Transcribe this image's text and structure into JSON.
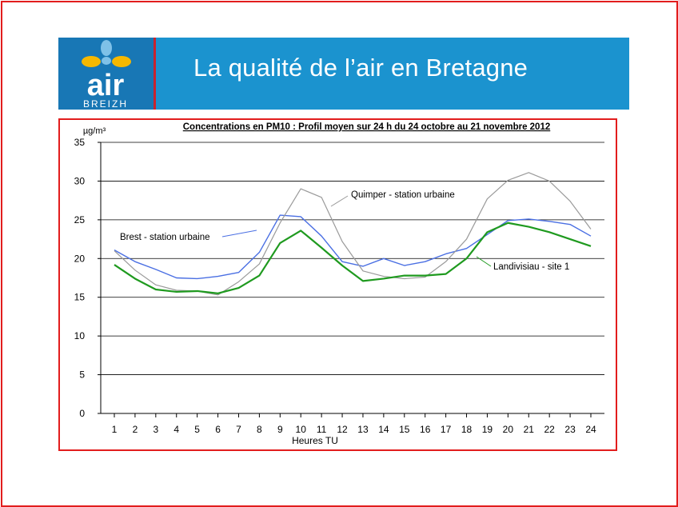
{
  "banner": {
    "logo_text": "AIR",
    "logo_subtext": "BREIZH",
    "title": "La qualité de l’air en Bretagne"
  },
  "colors": {
    "banner_bg": "#1b93cf",
    "logo_bg": "#1877b5",
    "frame": "#e21d1d",
    "brest": "#4a6fe3",
    "quimper": "#9a9a9a",
    "landivisiau": "#1f9a1f"
  },
  "chart_data": {
    "type": "line",
    "title": "Concentrations en PM10 : Profil moyen sur 24 h du 24 octobre au 21 novembre 2012",
    "ylabel": "µg/m³",
    "xlabel": "Heures TU",
    "ylim": [
      0,
      35
    ],
    "yticks": [
      0,
      5,
      10,
      15,
      20,
      25,
      30,
      35
    ],
    "grid": true,
    "x": [
      1,
      2,
      3,
      4,
      5,
      6,
      7,
      8,
      9,
      10,
      11,
      12,
      13,
      14,
      15,
      16,
      17,
      18,
      19,
      20,
      21,
      22,
      23,
      24
    ],
    "series": [
      {
        "name": "Brest - station urbaine",
        "color": "#4a6fe3",
        "values": [
          21.1,
          19.6,
          18.6,
          17.5,
          17.4,
          17.7,
          18.2,
          20.8,
          25.6,
          25.4,
          22.9,
          19.6,
          19.0,
          20.0,
          19.1,
          19.6,
          20.6,
          21.3,
          23.1,
          24.9,
          25.1,
          24.8,
          24.4,
          22.9
        ]
      },
      {
        "name": "Quimper - station urbaine",
        "color": "#9a9a9a",
        "values": [
          21.0,
          18.5,
          16.6,
          15.9,
          15.8,
          15.3,
          17.0,
          19.3,
          24.6,
          29.0,
          27.9,
          22.2,
          18.4,
          17.7,
          17.4,
          17.6,
          19.6,
          22.5,
          27.7,
          30.1,
          31.1,
          30.0,
          27.4,
          23.8
        ]
      },
      {
        "name": "Landivisiau - site 1",
        "color": "#1f9a1f",
        "values": [
          19.2,
          17.4,
          16.0,
          15.7,
          15.8,
          15.5,
          16.2,
          17.8,
          22.0,
          23.6,
          21.4,
          19.1,
          17.1,
          17.4,
          17.8,
          17.8,
          18.0,
          20.0,
          23.4,
          24.6,
          24.1,
          23.4,
          22.5,
          21.6
        ]
      }
    ]
  }
}
